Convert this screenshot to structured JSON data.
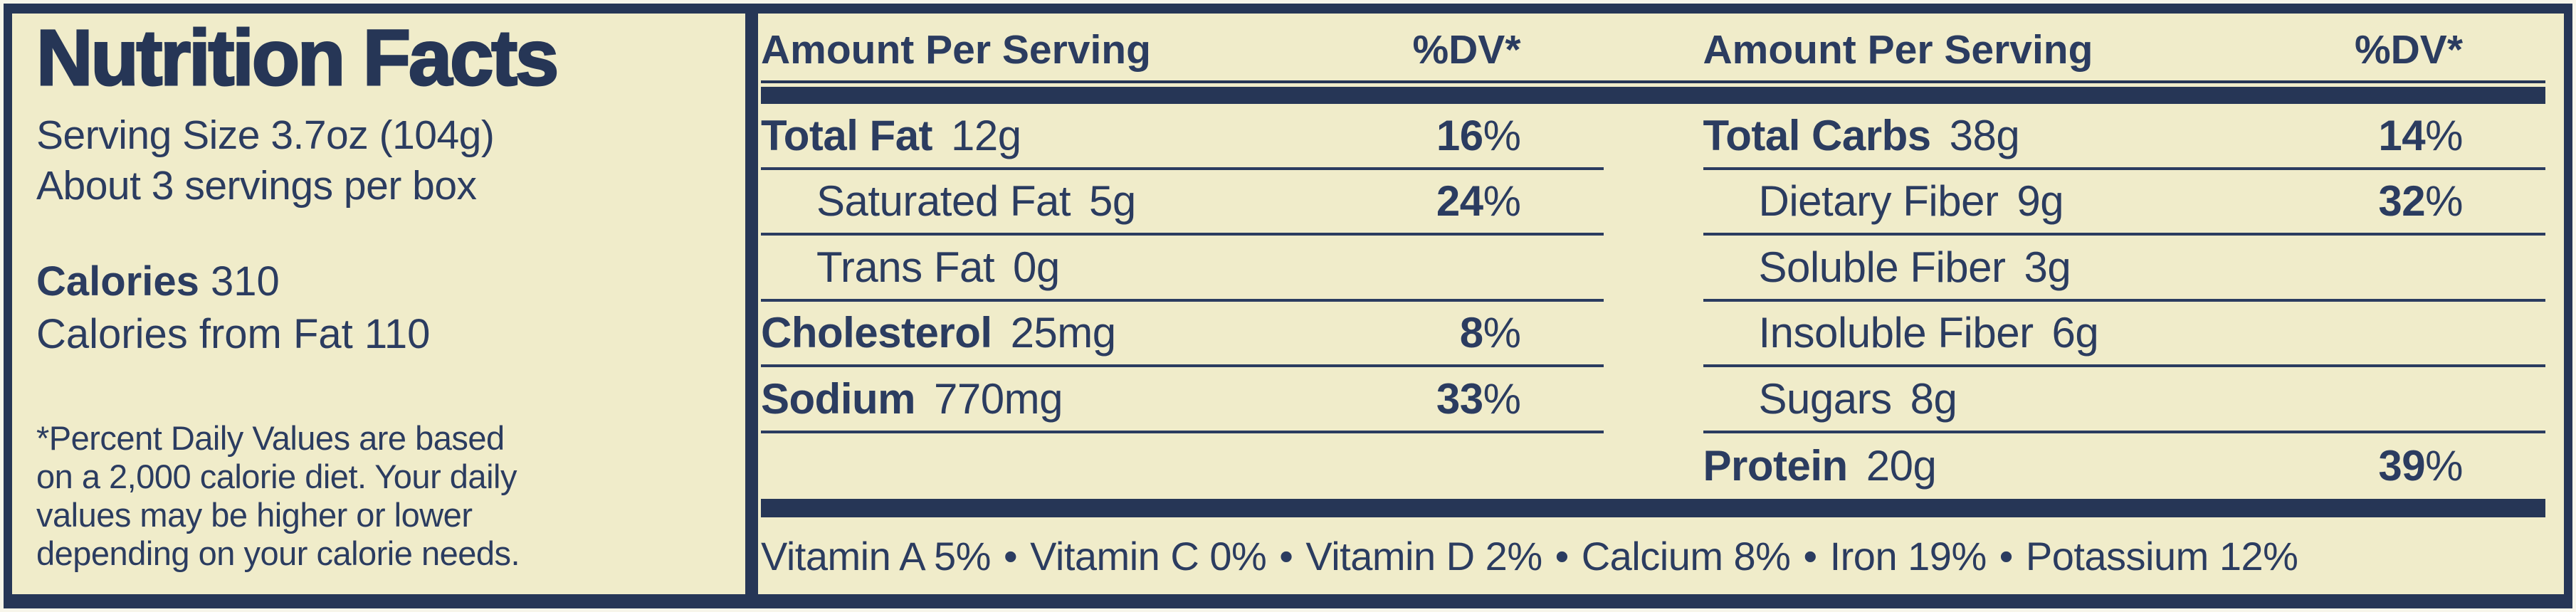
{
  "label": {
    "title": "Nutrition Facts",
    "serving_size": "Serving Size 3.7oz (104g)",
    "servings_per_box": "About 3 servings per box",
    "calories_label": "Calories",
    "calories_value": "310",
    "calories_from_fat": "Calories from Fat 110",
    "footnote_lines": [
      "*Percent Daily Values are based",
      "on a 2,000 calorie diet. Your daily",
      "values may be higher or lower",
      "depending on your calorie needs."
    ]
  },
  "columns": [
    {
      "header_amount": "Amount Per Serving",
      "header_dv": "%DV*",
      "rows": [
        {
          "name": "Total Fat",
          "amount": "12g",
          "dv": "16",
          "dv_sign": "%"
        },
        {
          "name": "Saturated Fat",
          "amount": "5g",
          "dv": "24",
          "dv_sign": "%"
        },
        {
          "name": "Trans Fat",
          "amount": "0g",
          "dv": "",
          "dv_sign": ""
        },
        {
          "name": "Cholesterol",
          "amount": "25mg",
          "dv": "8",
          "dv_sign": "%"
        },
        {
          "name": "Sodium",
          "amount": "770mg",
          "dv": "33",
          "dv_sign": "%"
        }
      ]
    },
    {
      "header_amount": "Amount Per Serving",
      "header_dv": "%DV*",
      "rows": [
        {
          "name": "Total Carbs",
          "amount": "38g",
          "dv": "14",
          "dv_sign": "%"
        },
        {
          "name": "Dietary Fiber",
          "amount": "9g",
          "dv": "32",
          "dv_sign": "%"
        },
        {
          "name": "Soluble Fiber",
          "amount": "3g",
          "dv": "",
          "dv_sign": ""
        },
        {
          "name": "Insoluble Fiber",
          "amount": "6g",
          "dv": "",
          "dv_sign": ""
        },
        {
          "name": "Sugars",
          "amount": "8g",
          "dv": "",
          "dv_sign": ""
        },
        {
          "name": "Protein",
          "amount": "20g",
          "dv": "39",
          "dv_sign": "%"
        }
      ]
    }
  ],
  "vitamins": [
    "Vitamin A 5%",
    "Vitamin C 0%",
    "Vitamin D 2%",
    "Calcium 8%",
    "Iron 19%",
    "Potassium 12%"
  ],
  "bullet": "•",
  "colors": {
    "background": "#f0ecca",
    "ink": "#2b3c60",
    "bars": "#263656"
  }
}
